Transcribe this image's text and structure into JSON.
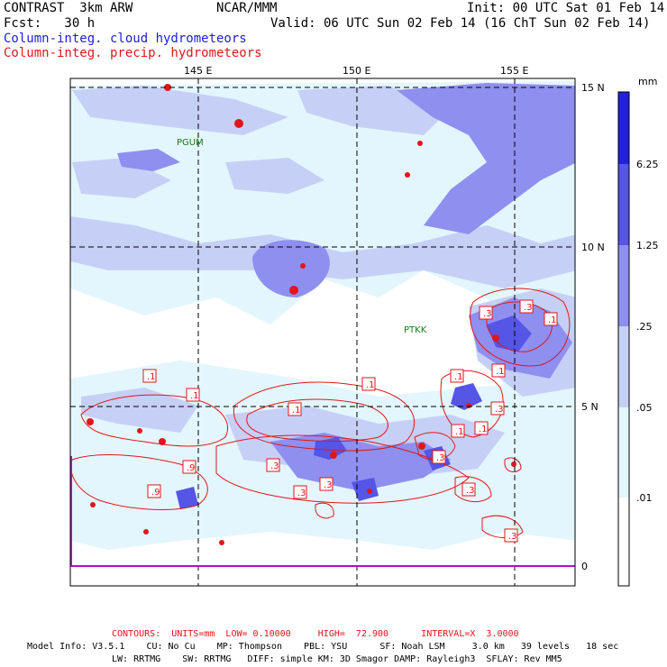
{
  "header": {
    "title_line": "CONTRAST  3km ARW",
    "agency": "NCAR/MMM",
    "init": "Init: 00 UTC Sat 01 Feb 14",
    "fcst": "Fcst:   30 h",
    "valid": "Valid: 06 UTC Sun 02 Feb 14 (16 ChT Sun 02 Feb 14)",
    "field_cloud": "Column-integ. cloud hydrometeors",
    "field_precip": "Column-integ. precip. hydrometeors"
  },
  "map": {
    "lon_labels": [
      "145 E",
      "150 E",
      "155 E"
    ],
    "lat_labels": [
      "15 N",
      "10 N",
      "5 N",
      "0"
    ],
    "stations": [
      "PGUM",
      "PTKK"
    ],
    "contour_labels": [
      ".1",
      ".1",
      ".1",
      ".1",
      ".1",
      ".1",
      ".1",
      ".1",
      ".1",
      ".3",
      ".3",
      ".3",
      ".3",
      ".3",
      ".3",
      ".3",
      ".3",
      ".9",
      ".9",
      ".3"
    ]
  },
  "colorbar": {
    "unit": "mm",
    "labels": [
      "6.25",
      "1.25",
      ".25",
      ".05",
      ".01"
    ],
    "colors": [
      "#2222dd",
      "#5555e6",
      "#8f8ff0",
      "#c6d0f6",
      "#e3f6fd",
      "#ffffff"
    ]
  },
  "footer": {
    "contours": "CONTOURS:  UNITS=mm  LOW= 0.10000     HIGH=  72.900      INTERVAL=X  3.0000",
    "model_line1": "Model Info: V3.5.1    CU: No Cu    MP: Thompson    PBL: YSU      SF: Noah LSM     3.0 km   39 levels   18 sec",
    "model_line2": "LW: RRTMG    SW: RRTMG   DIFF: simple KM: 3D Smagor DAMP: Rayleigh3  SFLAY: Rev MM5"
  },
  "colors": {
    "cloud_text": "#1d1ddb",
    "precip_text": "#e0161a",
    "boundary": "#cc00cc"
  }
}
